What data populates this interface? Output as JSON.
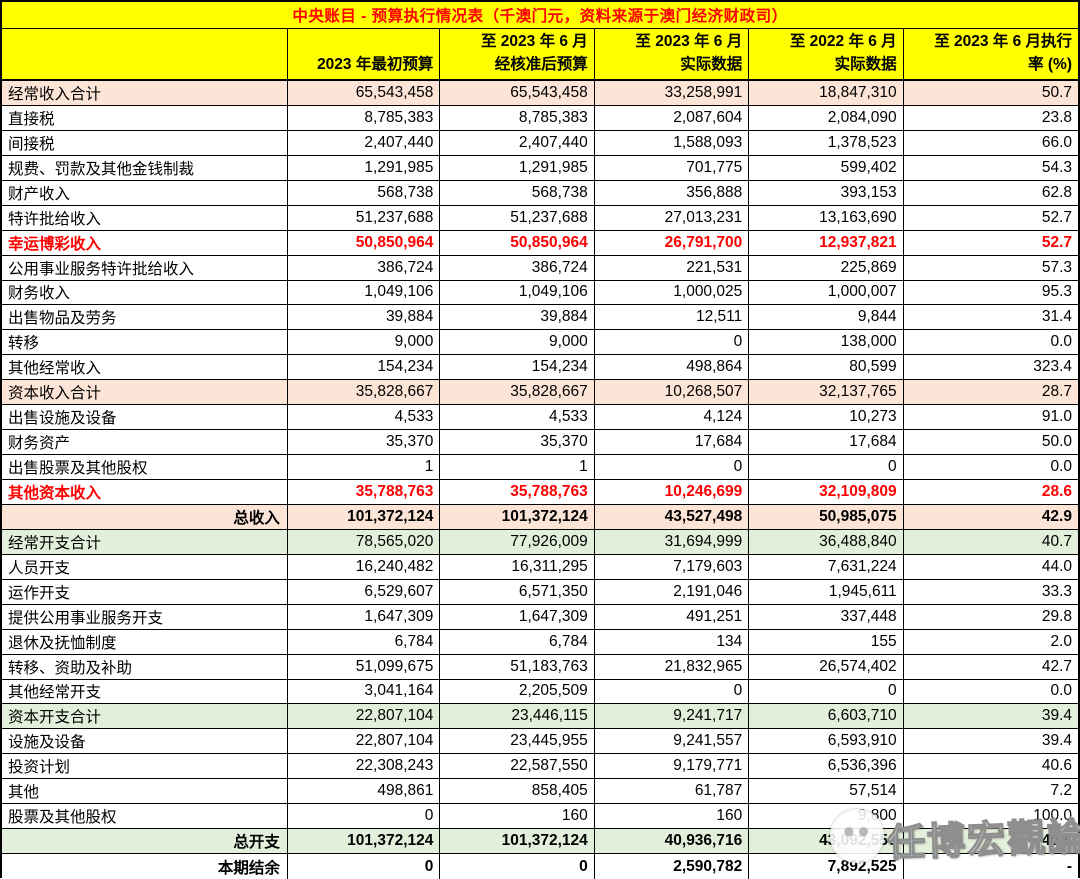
{
  "title": "中央账目 - 预算执行情况表（千澳门元，资料来源于澳门经济财政司）",
  "colors": {
    "header_yellow": "#FFFF00",
    "summary_peach": "#FCE4D6",
    "summary_green": "#E2EFDA",
    "highlight_red": "#FF0000",
    "border_black": "#000000"
  },
  "header": {
    "label_col": "",
    "col_initial": "2023 年最初预算",
    "col_revised_l1": "至 2023 年 6 月",
    "col_revised_l2": "经核准后预算",
    "col_actual2023_l1": "至 2023 年 6 月",
    "col_actual2023_l2": "实际数据",
    "col_actual2022_l1": "至 2022 年 6 月",
    "col_actual2022_l2": "实际数据",
    "col_rate_l1": "至 2023 年 6 月执行",
    "col_rate_l2": "率 (%)"
  },
  "table": {
    "rows": [
      {
        "label": "经常收入合计",
        "values": [
          "65,543,458",
          "65,543,458",
          "33,258,991",
          "18,847,310",
          "50.7"
        ],
        "style": "peach",
        "bold": false,
        "label_right": false
      },
      {
        "label": "直接税",
        "values": [
          "8,785,383",
          "8,785,383",
          "2,087,604",
          "2,084,090",
          "23.8"
        ],
        "style": "plain",
        "bold": false,
        "label_right": false
      },
      {
        "label": "间接税",
        "values": [
          "2,407,440",
          "2,407,440",
          "1,588,093",
          "1,378,523",
          "66.0"
        ],
        "style": "plain",
        "bold": false,
        "label_right": false
      },
      {
        "label": "规费、罚款及其他金钱制裁",
        "values": [
          "1,291,985",
          "1,291,985",
          "701,775",
          "599,402",
          "54.3"
        ],
        "style": "plain",
        "bold": false,
        "label_right": false
      },
      {
        "label": "财产收入",
        "values": [
          "568,738",
          "568,738",
          "356,888",
          "393,153",
          "62.8"
        ],
        "style": "plain",
        "bold": false,
        "label_right": false
      },
      {
        "label": "特许批给收入",
        "values": [
          "51,237,688",
          "51,237,688",
          "27,013,231",
          "13,163,690",
          "52.7"
        ],
        "style": "plain",
        "bold": false,
        "label_right": false
      },
      {
        "label": "幸运博彩收入",
        "values": [
          "50,850,964",
          "50,850,964",
          "26,791,700",
          "12,937,821",
          "52.7"
        ],
        "style": "red",
        "bold": true,
        "label_right": false
      },
      {
        "label": "公用事业服务特许批给收入",
        "values": [
          "386,724",
          "386,724",
          "221,531",
          "225,869",
          "57.3"
        ],
        "style": "plain",
        "bold": false,
        "label_right": false
      },
      {
        "label": "财务收入",
        "values": [
          "1,049,106",
          "1,049,106",
          "1,000,025",
          "1,000,007",
          "95.3"
        ],
        "style": "plain",
        "bold": false,
        "label_right": false
      },
      {
        "label": "出售物品及劳务",
        "values": [
          "39,884",
          "39,884",
          "12,511",
          "9,844",
          "31.4"
        ],
        "style": "plain",
        "bold": false,
        "label_right": false
      },
      {
        "label": "转移",
        "values": [
          "9,000",
          "9,000",
          "0",
          "138,000",
          "0.0"
        ],
        "style": "plain",
        "bold": false,
        "label_right": false
      },
      {
        "label": "其他经常收入",
        "values": [
          "154,234",
          "154,234",
          "498,864",
          "80,599",
          "323.4"
        ],
        "style": "plain",
        "bold": false,
        "label_right": false
      },
      {
        "label": "资本收入合计",
        "values": [
          "35,828,667",
          "35,828,667",
          "10,268,507",
          "32,137,765",
          "28.7"
        ],
        "style": "peach",
        "bold": false,
        "label_right": false
      },
      {
        "label": "出售设施及设备",
        "values": [
          "4,533",
          "4,533",
          "4,124",
          "10,273",
          "91.0"
        ],
        "style": "plain",
        "bold": false,
        "label_right": false
      },
      {
        "label": "财务资产",
        "values": [
          "35,370",
          "35,370",
          "17,684",
          "17,684",
          "50.0"
        ],
        "style": "plain",
        "bold": false,
        "label_right": false
      },
      {
        "label": "出售股票及其他股权",
        "values": [
          "1",
          "1",
          "0",
          "0",
          "0.0"
        ],
        "style": "plain",
        "bold": false,
        "label_right": false
      },
      {
        "label": "其他资本收入",
        "values": [
          "35,788,763",
          "35,788,763",
          "10,246,699",
          "32,109,809",
          "28.6"
        ],
        "style": "red",
        "bold": true,
        "label_right": false
      },
      {
        "label": "总收入",
        "values": [
          "101,372,124",
          "101,372,124",
          "43,527,498",
          "50,985,075",
          "42.9"
        ],
        "style": "peach",
        "bold": true,
        "label_right": true
      },
      {
        "label": "经常开支合计",
        "values": [
          "78,565,020",
          "77,926,009",
          "31,694,999",
          "36,488,840",
          "40.7"
        ],
        "style": "green",
        "bold": false,
        "label_right": false
      },
      {
        "label": "人员开支",
        "values": [
          "16,240,482",
          "16,311,295",
          "7,179,603",
          "7,631,224",
          "44.0"
        ],
        "style": "plain",
        "bold": false,
        "label_right": false
      },
      {
        "label": "运作开支",
        "values": [
          "6,529,607",
          "6,571,350",
          "2,191,046",
          "1,945,611",
          "33.3"
        ],
        "style": "plain",
        "bold": false,
        "label_right": false
      },
      {
        "label": "提供公用事业服务开支",
        "values": [
          "1,647,309",
          "1,647,309",
          "491,251",
          "337,448",
          "29.8"
        ],
        "style": "plain",
        "bold": false,
        "label_right": false
      },
      {
        "label": "退休及抚恤制度",
        "values": [
          "6,784",
          "6,784",
          "134",
          "155",
          "2.0"
        ],
        "style": "plain",
        "bold": false,
        "label_right": false
      },
      {
        "label": "转移、资助及补助",
        "values": [
          "51,099,675",
          "51,183,763",
          "21,832,965",
          "26,574,402",
          "42.7"
        ],
        "style": "plain",
        "bold": false,
        "label_right": false
      },
      {
        "label": "其他经常开支",
        "values": [
          "3,041,164",
          "2,205,509",
          "0",
          "0",
          "0.0"
        ],
        "style": "plain",
        "bold": false,
        "label_right": false
      },
      {
        "label": "资本开支合计",
        "values": [
          "22,807,104",
          "23,446,115",
          "9,241,717",
          "6,603,710",
          "39.4"
        ],
        "style": "green",
        "bold": false,
        "label_right": false
      },
      {
        "label": "设施及设备",
        "values": [
          "22,807,104",
          "23,445,955",
          "9,241,557",
          "6,593,910",
          "39.4"
        ],
        "style": "plain",
        "bold": false,
        "label_right": false
      },
      {
        "label": "投资计划",
        "values": [
          "22,308,243",
          "22,587,550",
          "9,179,771",
          "6,536,396",
          "40.6"
        ],
        "style": "plain",
        "bold": false,
        "label_right": false
      },
      {
        "label": "其他",
        "values": [
          "498,861",
          "858,405",
          "61,787",
          "57,514",
          "7.2"
        ],
        "style": "plain",
        "bold": false,
        "label_right": false
      },
      {
        "label": "股票及其他股权",
        "values": [
          "0",
          "160",
          "160",
          "9,800",
          "100.0"
        ],
        "style": "plain",
        "bold": false,
        "label_right": false
      },
      {
        "label": "总开支",
        "values": [
          "101,372,124",
          "101,372,124",
          "40,936,716",
          "43,092,550",
          "40.4"
        ],
        "style": "green",
        "bold": true,
        "label_right": true
      },
      {
        "label": "本期结余",
        "values": [
          "0",
          "0",
          "2,590,782",
          "7,892,525",
          "-"
        ],
        "style": "plain",
        "bold": true,
        "label_right": true
      }
    ]
  },
  "watermark": {
    "text": "任博宏觀論道"
  }
}
